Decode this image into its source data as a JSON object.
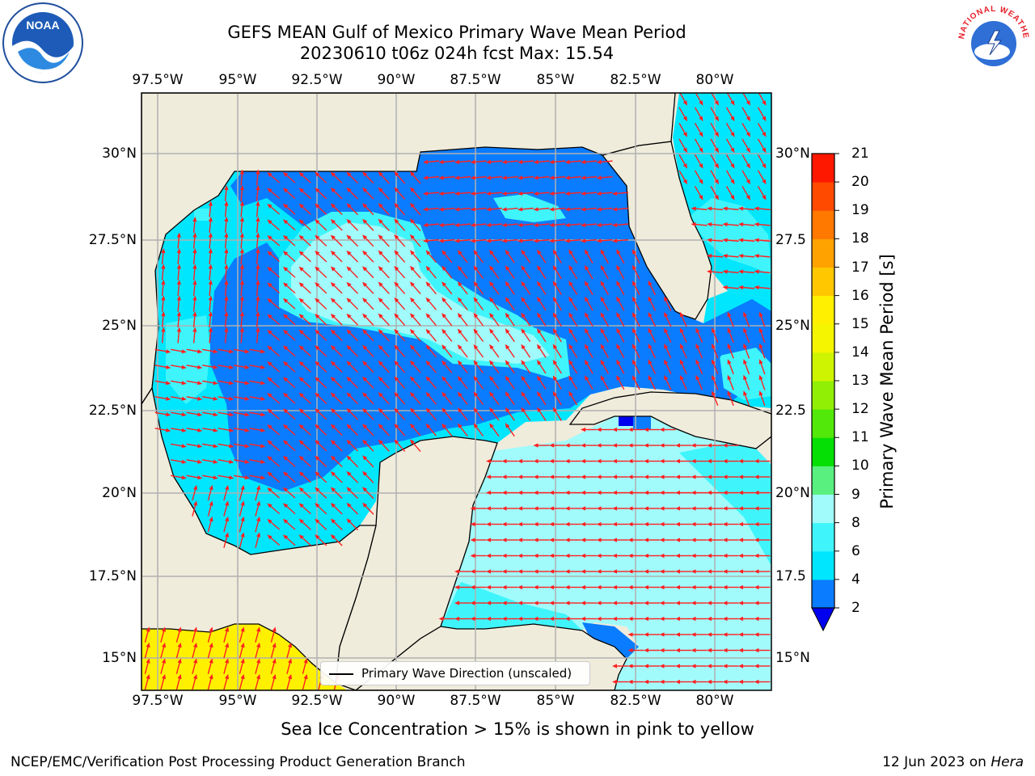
{
  "title": {
    "line1": "GEFS MEAN Gulf of Mexico Primary Wave Mean Period",
    "line2": "20230610 t06z 024h fcst   Max: 15.54"
  },
  "axes": {
    "lon_labels": [
      "97.5°W",
      "95°W",
      "92.5°W",
      "90°W",
      "87.5°W",
      "85°W",
      "82.5°W",
      "80°W"
    ],
    "lat_labels": [
      "30°N",
      "27.5°N",
      "25°N",
      "22.5°N",
      "20°N",
      "17.5°N",
      "15°N"
    ],
    "lat_labels_right": [
      "30°N",
      "27.5",
      "25°N",
      "22.5",
      "20°N",
      "17.5",
      "15°N"
    ]
  },
  "map": {
    "land_color": "#efecdc",
    "arrow_color": "#ff2020",
    "grid_color": "#b0b0b0"
  },
  "colorbar": {
    "label": "Primary Wave Mean Period [s]",
    "ticks": [
      "2",
      "4",
      "6",
      "8",
      "9",
      "10",
      "11",
      "12",
      "13",
      "14",
      "15",
      "16",
      "17",
      "18",
      "19",
      "20",
      "21"
    ],
    "colors": [
      "#0a7cff",
      "#00e6ff",
      "#3ff5fb",
      "#a1fbfb",
      "#59f080",
      "#06df06",
      "#52e80a",
      "#91ef06",
      "#cff401",
      "#f5f500",
      "#fff000",
      "#ffc700",
      "#ffa200",
      "#ff7800",
      "#ff4a00",
      "#ff1800"
    ],
    "under_color": "#0000ee"
  },
  "legend": {
    "label": "Primary Wave Direction (unscaled)"
  },
  "note": "Sea Ice Concentration > 15% is shown in pink to yellow",
  "footer": {
    "left": "NCEP/EMC/Verification Post Processing Product Generation Branch",
    "right_prefix": "12 Jun 2023 on ",
    "right_italic": "Hera"
  },
  "logos": {
    "noaa_text": "NOAA",
    "nws_text": "NATIONAL WEATHER SERVICE"
  }
}
